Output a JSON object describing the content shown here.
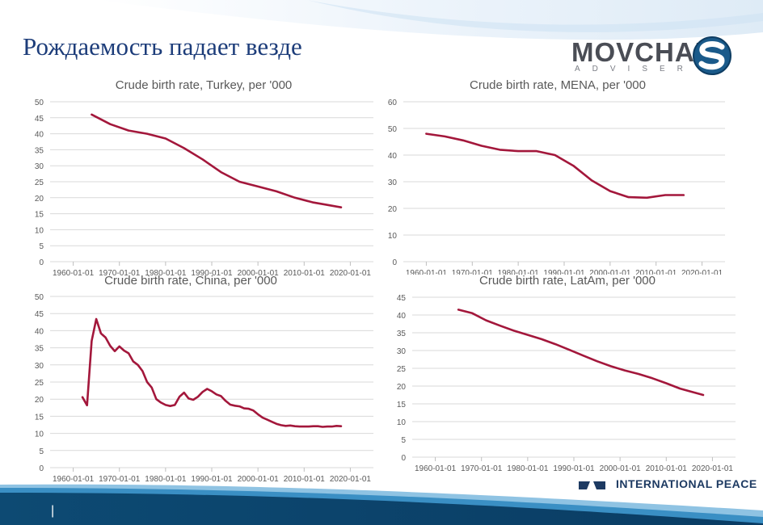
{
  "slide": {
    "title": "Рождаемость падает везде",
    "page_number": "|",
    "logo": {
      "main": "MOVCHAN",
      "sub": "ADVISER"
    },
    "footer_org": "INTERNATIONAL PEACE"
  },
  "colors": {
    "line": "#a3173b",
    "grid": "#d9d9d9",
    "text": "#595959",
    "title_blue": "#1d3d7a"
  },
  "chart_data": [
    {
      "type": "line",
      "title": "Crude birth rate, Turkey, per '000",
      "ylim": [
        0,
        50
      ],
      "yticks": [
        0,
        5,
        10,
        15,
        20,
        25,
        30,
        35,
        40,
        45,
        50
      ],
      "xticks": [
        "1960-01-01",
        "1970-01-01",
        "1980-01-01",
        "1990-01-01",
        "2000-01-01",
        "2010-01-01",
        "2020-01-01"
      ],
      "x": [
        1964,
        1968,
        1972,
        1976,
        1980,
        1984,
        1988,
        1992,
        1996,
        2000,
        2004,
        2008,
        2012,
        2016,
        2018
      ],
      "values": [
        46,
        43,
        41,
        40,
        38.5,
        35.5,
        32,
        28,
        25,
        23.5,
        22,
        20,
        18.5,
        17.5,
        17
      ]
    },
    {
      "type": "line",
      "title": "Crude birth rate, MENA,  per '000",
      "ylim": [
        0,
        60
      ],
      "yticks": [
        0,
        10,
        20,
        30,
        40,
        50,
        60
      ],
      "xticks": [
        "1960-01-01",
        "1970-01-01",
        "1980-01-01",
        "1990-01-01",
        "2000-01-01",
        "2010-01-01",
        "2020-01-01"
      ],
      "x": [
        1960,
        1964,
        1968,
        1972,
        1976,
        1980,
        1984,
        1988,
        1992,
        1996,
        2000,
        2004,
        2008,
        2012,
        2016
      ],
      "values": [
        48,
        47,
        45.5,
        43.5,
        42,
        41.5,
        41.5,
        40,
        36,
        30.5,
        26.5,
        24.2,
        24,
        25,
        25
      ]
    },
    {
      "type": "line",
      "title": "Crude birth rate, China, per '000",
      "ylim": [
        0,
        50
      ],
      "yticks": [
        0,
        5,
        10,
        15,
        20,
        25,
        30,
        35,
        40,
        45,
        50
      ],
      "xticks": [
        "1960-01-01",
        "1970-01-01",
        "1980-01-01",
        "1990-01-01",
        "2000-01-01",
        "2010-01-01",
        "2020-01-01"
      ],
      "x": [
        1962,
        1963,
        1964,
        1965,
        1966,
        1967,
        1968,
        1969,
        1970,
        1971,
        1972,
        1973,
        1974,
        1975,
        1976,
        1977,
        1978,
        1979,
        1980,
        1981,
        1982,
        1983,
        1984,
        1985,
        1986,
        1987,
        1988,
        1989,
        1990,
        1991,
        1992,
        1993,
        1994,
        1995,
        1996,
        1997,
        1998,
        1999,
        2000,
        2001,
        2002,
        2003,
        2004,
        2005,
        2006,
        2007,
        2008,
        2009,
        2010,
        2011,
        2012,
        2013,
        2014,
        2015,
        2016,
        2017,
        2018
      ],
      "values": [
        20.6,
        18.2,
        37,
        43.4,
        39.2,
        38,
        35.6,
        34,
        35.4,
        34.2,
        33.4,
        31,
        30,
        28.2,
        25,
        23.4,
        20,
        19,
        18.3,
        18,
        18.3,
        20.7,
        21.9,
        20.2,
        19.8,
        20.7,
        22.1,
        23,
        22.3,
        21.4,
        20.9,
        19.5,
        18.4,
        18.1,
        17.9,
        17.3,
        17.2,
        16.7,
        15.6,
        14.6,
        14,
        13.4,
        12.8,
        12.4,
        12.2,
        12.3,
        12.1,
        12,
        12,
        12,
        12.1,
        12.1,
        11.9,
        12,
        12,
        12.2,
        12.1
      ]
    },
    {
      "type": "line",
      "title": "Crude birth rate, LatAm, per '000",
      "ylim": [
        0,
        45
      ],
      "yticks": [
        0,
        5,
        10,
        15,
        20,
        25,
        30,
        35,
        40,
        45
      ],
      "xticks": [
        "1960-01-01",
        "1970-01-01",
        "1980-01-01",
        "1990-01-01",
        "2000-01-01",
        "2010-01-01",
        "2020-01-01"
      ],
      "x": [
        1965,
        1968,
        1971,
        1974,
        1977,
        1980,
        1983,
        1986,
        1989,
        1992,
        1995,
        1998,
        2001,
        2004,
        2007,
        2010,
        2013,
        2016,
        2018
      ],
      "values": [
        41.5,
        40.5,
        38.5,
        37,
        35.6,
        34.4,
        33.2,
        31.8,
        30.2,
        28.6,
        27,
        25.6,
        24.4,
        23.4,
        22.2,
        20.8,
        19.3,
        18.2,
        17.5
      ]
    }
  ]
}
